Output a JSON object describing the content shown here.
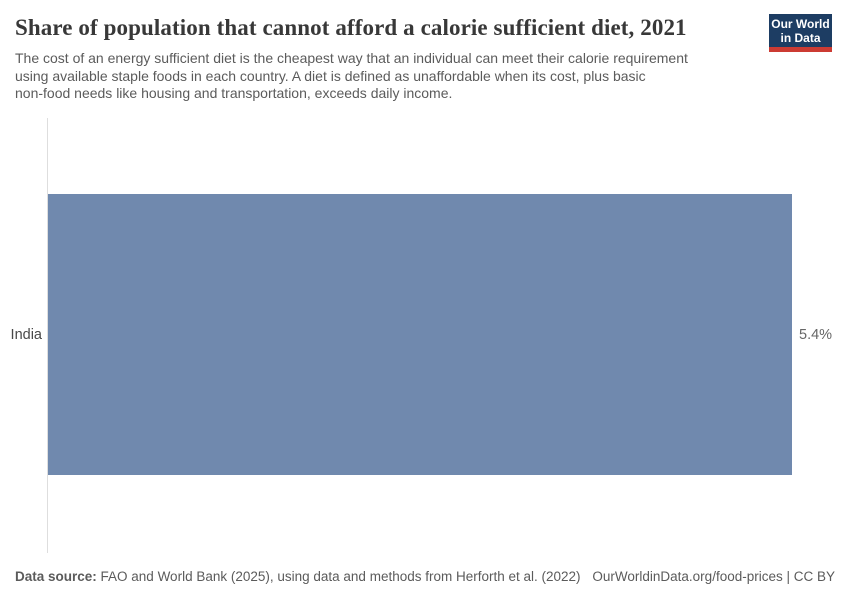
{
  "header": {
    "title": "Share of population that cannot afford a calorie sufficient diet, 2021",
    "subtitle_lines": [
      "The cost of an energy sufficient diet is the cheapest way that an individual can meet their calorie requirement",
      "using available staple foods in each country. A diet is defined as unaffordable when its cost, plus basic",
      "non-food needs like housing and transportation, exceeds daily income."
    ],
    "logo": {
      "line1": "Our World",
      "line2": "in Data"
    }
  },
  "chart_data": {
    "type": "bar",
    "orientation": "horizontal",
    "title": "Share of population that cannot afford a calorie sufficient diet, 2021",
    "categories": [
      "India"
    ],
    "values": [
      5.4
    ],
    "value_labels": [
      "5.4%"
    ],
    "xlim": [
      0,
      5.4
    ],
    "grid": false,
    "legend": false,
    "bar_color": "#7089ae"
  },
  "footer": {
    "datasource_label": "Data source:",
    "datasource_text": " FAO and World Bank (2025), using data and methods from Herforth et al. (2022)",
    "license_text": "OurWorldinData.org/food-prices | CC BY"
  },
  "colors": {
    "bar": "#7089ae",
    "logo_navy": "#1d3d63",
    "logo_red": "#cc3b33",
    "axis_line": "#dedede",
    "title_text": "#383838",
    "subtitle_text": "#5b5b5b"
  }
}
